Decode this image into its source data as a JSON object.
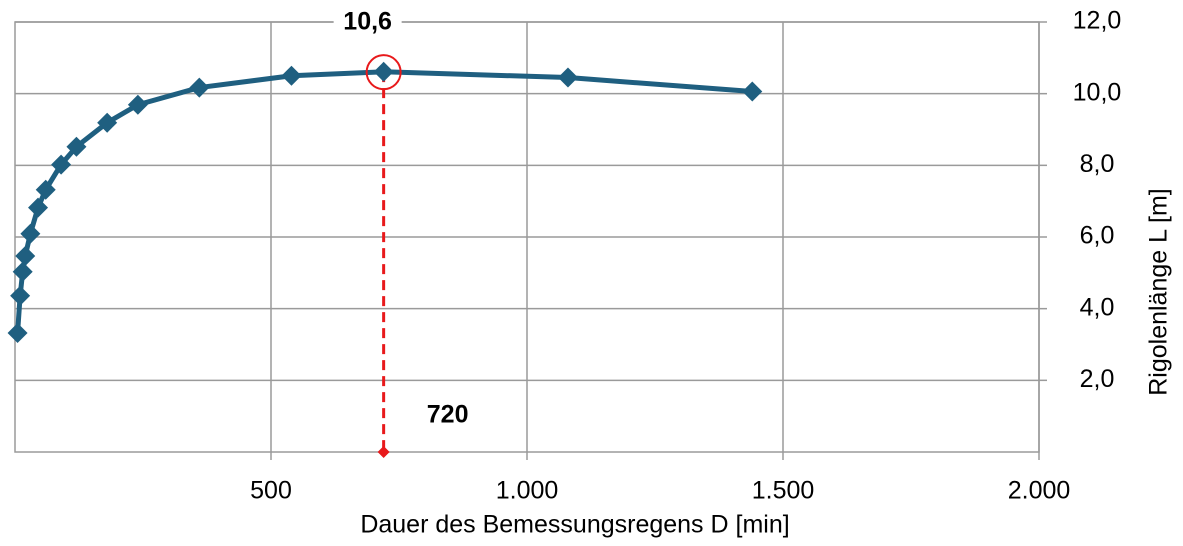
{
  "chart_data": {
    "type": "line",
    "x_label": "Dauer des Bemessungsregens  D [min]",
    "y_label": "Rigolenlänge L [m]",
    "x": [
      5,
      10,
      15,
      20,
      30,
      45,
      60,
      90,
      120,
      180,
      240,
      360,
      540,
      720,
      1080,
      1440
    ],
    "series": [
      {
        "color": "#1f5f80",
        "values": [
          3.32,
          4.36,
          5.03,
          5.47,
          6.09,
          6.82,
          7.32,
          8.02,
          8.52,
          9.19,
          9.69,
          10.17,
          10.5,
          10.61,
          10.45,
          10.06
        ]
      }
    ],
    "xlim": [
      0,
      2000
    ],
    "xticks": [
      500,
      {
        "value": 1000,
        "label": "1.000"
      },
      {
        "value": 1500,
        "label": "1.500"
      },
      {
        "value": 2000,
        "label": "2.000"
      }
    ],
    "ylim": [
      0,
      12
    ],
    "yticks": [
      {
        "value": 2,
        "label": "2,0"
      },
      {
        "value": 4,
        "label": "4,0"
      },
      {
        "value": 6,
        "label": "6,0"
      },
      {
        "value": 8,
        "label": "8,0"
      },
      {
        "value": 10,
        "label": "10,0"
      },
      {
        "value": 12,
        "label": "12,0"
      }
    ],
    "grid": true,
    "highlight": {
      "x": 720,
      "y": 10.6,
      "x_label": "720",
      "y_label": "10,6",
      "color": "#e8191b"
    }
  }
}
